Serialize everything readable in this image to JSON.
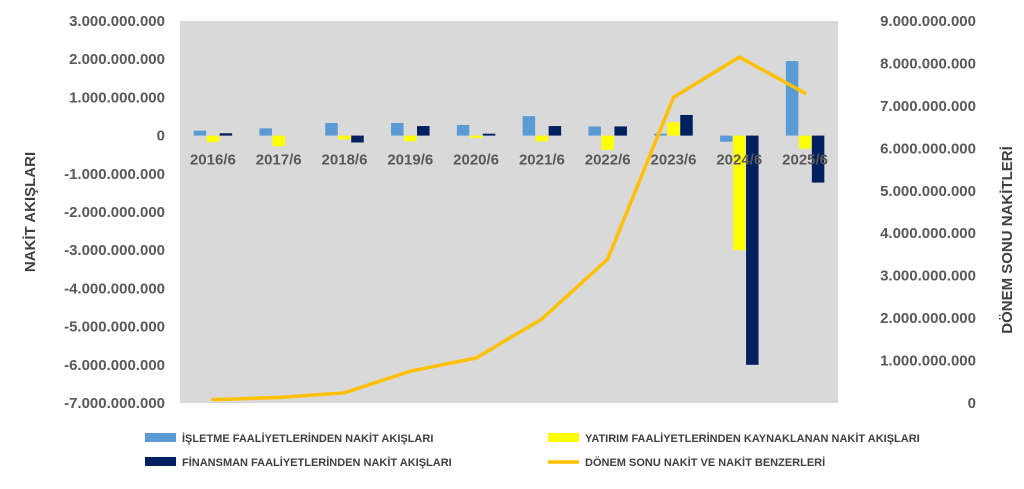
{
  "chart_data": {
    "type": "bar",
    "categories": [
      "2016/6",
      "2017/6",
      "2018/6",
      "2019/6",
      "2020/6",
      "2021/6",
      "2022/6",
      "2023/6",
      "2024/6",
      "2025/6"
    ],
    "series": [
      {
        "name": "İŞLETME FAALİYETLERİNDEN NAKİT AKIŞLARI",
        "type": "bar",
        "axis": "left",
        "color": "#5B9BD5",
        "values": [
          130000000,
          190000000,
          330000000,
          330000000,
          280000000,
          510000000,
          240000000,
          50000000,
          -160000000,
          1950000000
        ]
      },
      {
        "name": "YATIRIM FAALİYETLERİNDEN KAYNAKLANAN NAKİT AKIŞLARI",
        "type": "bar",
        "axis": "left",
        "color": "#FFFF00",
        "values": [
          -170000000,
          -280000000,
          -100000000,
          -150000000,
          -60000000,
          -150000000,
          -370000000,
          350000000,
          -3000000000,
          -340000000
        ]
      },
      {
        "name": "FİNANSMAN FAALİYETLERİNDEN NAKİT AKIŞLARI",
        "type": "bar",
        "axis": "left",
        "color": "#002060",
        "values": [
          60000000,
          0,
          -180000000,
          250000000,
          50000000,
          250000000,
          240000000,
          540000000,
          -6000000000,
          -1230000000
        ]
      },
      {
        "name": "DÖNEM SONU NAKİT VE NAKİT BENZERLERİ",
        "type": "line",
        "axis": "right",
        "color": "#FFC000",
        "values": [
          80000000,
          130000000,
          240000000,
          750000000,
          1060000000,
          1980000000,
          3390000000,
          7200000000,
          8150000000,
          7300000000
        ]
      }
    ],
    "ylabel": "NAKİT AKIŞLARI",
    "y2label": "DÖNEM SONU NAKİTLERİ",
    "ylim": [
      -7000000000,
      3000000000
    ],
    "y2lim": [
      0,
      9000000000
    ],
    "yticks": [
      "3.000.000.000",
      "2.000.000.000",
      "1.000.000.000",
      "0",
      "-1.000.000.000",
      "-2.000.000.000",
      "-3.000.000.000",
      "-4.000.000.000",
      "-5.000.000.000",
      "-6.000.000.000",
      "-7.000.000.000"
    ],
    "y2ticks": [
      "9.000.000.000",
      "8.000.000.000",
      "7.000.000.000",
      "6.000.000.000",
      "5.000.000.000",
      "4.000.000.000",
      "3.000.000.000",
      "2.000.000.000",
      "1.000.000.000",
      "0"
    ],
    "plot_background": "#D9D9D9",
    "grid": false,
    "legend_position": "bottom"
  }
}
